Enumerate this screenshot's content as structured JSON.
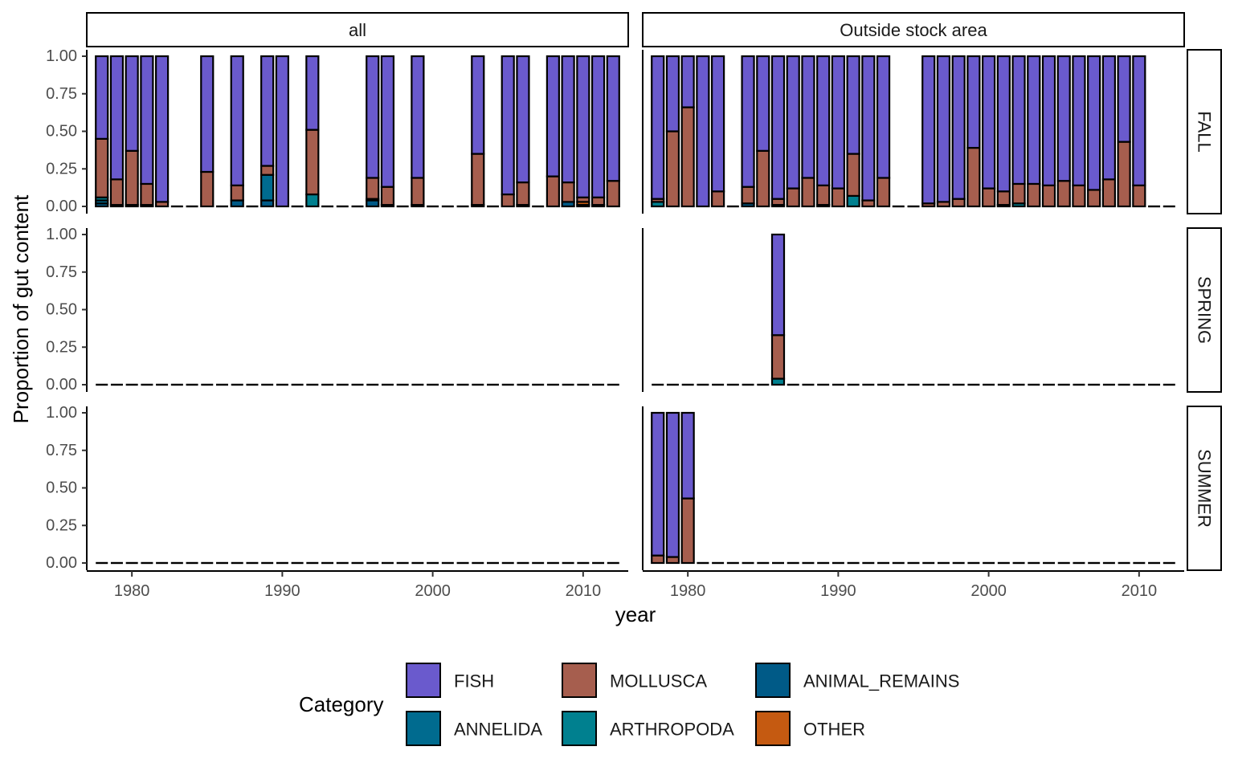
{
  "chart_data": {
    "type": "bar",
    "stacked": true,
    "xlabel": "year",
    "ylabel": "Proportion of gut content",
    "x_ticks": [
      1980,
      1990,
      2000,
      2010
    ],
    "y_ticks": [
      "0.00",
      "0.25",
      "0.50",
      "0.75",
      "1.00"
    ],
    "ylim": [
      0,
      1
    ],
    "xlim": [
      1977,
      2013
    ],
    "facet_columns": [
      "all",
      "Outside stock area"
    ],
    "facet_rows": [
      "FALL",
      "SPRING",
      "SUMMER"
    ],
    "grid": false,
    "legend": {
      "title": "Category",
      "position": "bottom",
      "items": [
        {
          "name": "FISH",
          "color": "#6a5acd"
        },
        {
          "name": "MOLLUSCA",
          "color": "#a65e4e"
        },
        {
          "name": "ANIMAL_REMAINS",
          "color": "#005a87"
        },
        {
          "name": "ANNELIDA",
          "color": "#006b8f"
        },
        {
          "name": "ARTHROPODA",
          "color": "#00808f"
        },
        {
          "name": "OTHER",
          "color": "#c55a11"
        }
      ]
    },
    "year_range": [
      1978,
      2012
    ],
    "panels": [
      {
        "column": "all",
        "row": "FALL",
        "bars": [
          {
            "year": 1978,
            "ANIMAL_REMAINS": 0.02,
            "ANNELIDA": 0.02,
            "ARTHROPODA": 0.02,
            "MOLLUSCA": 0.39,
            "FISH": 0.55
          },
          {
            "year": 1979,
            "ANIMAL_REMAINS": 0.01,
            "MOLLUSCA": 0.17,
            "FISH": 0.82
          },
          {
            "year": 1980,
            "ANIMAL_REMAINS": 0.01,
            "MOLLUSCA": 0.36,
            "FISH": 0.63
          },
          {
            "year": 1981,
            "ANIMAL_REMAINS": 0.01,
            "MOLLUSCA": 0.14,
            "FISH": 0.85
          },
          {
            "year": 1982,
            "MOLLUSCA": 0.03,
            "FISH": 0.97
          },
          {
            "year": 1985,
            "MOLLUSCA": 0.23,
            "FISH": 0.77
          },
          {
            "year": 1987,
            "ANIMAL_REMAINS": 0.04,
            "MOLLUSCA": 0.1,
            "FISH": 0.86
          },
          {
            "year": 1989,
            "ANIMAL_REMAINS": 0.04,
            "ANNELIDA": 0.17,
            "MOLLUSCA": 0.06,
            "FISH": 0.73
          },
          {
            "year": 1990,
            "FISH": 1.0
          },
          {
            "year": 1992,
            "ARTHROPODA": 0.08,
            "MOLLUSCA": 0.43,
            "FISH": 0.49
          },
          {
            "year": 1996,
            "ANIMAL_REMAINS": 0.04,
            "OTHER": 0.01,
            "MOLLUSCA": 0.14,
            "FISH": 0.81
          },
          {
            "year": 1997,
            "ANIMAL_REMAINS": 0.01,
            "MOLLUSCA": 0.12,
            "FISH": 0.87
          },
          {
            "year": 1999,
            "ANIMAL_REMAINS": 0.01,
            "MOLLUSCA": 0.18,
            "FISH": 0.81
          },
          {
            "year": 2003,
            "ANIMAL_REMAINS": 0.01,
            "MOLLUSCA": 0.34,
            "FISH": 0.65
          },
          {
            "year": 2005,
            "MOLLUSCA": 0.08,
            "FISH": 0.92
          },
          {
            "year": 2006,
            "ANIMAL_REMAINS": 0.01,
            "MOLLUSCA": 0.15,
            "FISH": 0.84
          },
          {
            "year": 2008,
            "MOLLUSCA": 0.2,
            "FISH": 0.8
          },
          {
            "year": 2009,
            "ANIMAL_REMAINS": 0.03,
            "MOLLUSCA": 0.13,
            "FISH": 0.84
          },
          {
            "year": 2010,
            "OTHER": 0.02,
            "ANIMAL_REMAINS": 0.01,
            "MOLLUSCA": 0.03,
            "FISH": 0.94
          },
          {
            "year": 2011,
            "ANIMAL_REMAINS": 0.01,
            "MOLLUSCA": 0.05,
            "FISH": 0.94
          },
          {
            "year": 2012,
            "MOLLUSCA": 0.17,
            "FISH": 0.83
          }
        ]
      },
      {
        "column": "Outside stock area",
        "row": "FALL",
        "bars": [
          {
            "year": 1978,
            "ARTHROPODA": 0.03,
            "MOLLUSCA": 0.02,
            "FISH": 0.95
          },
          {
            "year": 1979,
            "MOLLUSCA": 0.5,
            "FISH": 0.5
          },
          {
            "year": 1980,
            "MOLLUSCA": 0.66,
            "FISH": 0.34
          },
          {
            "year": 1981,
            "FISH": 1.0
          },
          {
            "year": 1982,
            "MOLLUSCA": 0.1,
            "FISH": 0.9
          },
          {
            "year": 1984,
            "ANIMAL_REMAINS": 0.02,
            "MOLLUSCA": 0.11,
            "FISH": 0.87
          },
          {
            "year": 1985,
            "MOLLUSCA": 0.37,
            "FISH": 0.63
          },
          {
            "year": 1986,
            "ANIMAL_REMAINS": 0.01,
            "MOLLUSCA": 0.04,
            "FISH": 0.95
          },
          {
            "year": 1987,
            "MOLLUSCA": 0.12,
            "FISH": 0.88
          },
          {
            "year": 1988,
            "MOLLUSCA": 0.19,
            "FISH": 0.81
          },
          {
            "year": 1989,
            "ANIMAL_REMAINS": 0.01,
            "MOLLUSCA": 0.13,
            "FISH": 0.86
          },
          {
            "year": 1990,
            "MOLLUSCA": 0.12,
            "FISH": 0.88
          },
          {
            "year": 1991,
            "ARTHROPODA": 0.07,
            "MOLLUSCA": 0.28,
            "FISH": 0.65
          },
          {
            "year": 1992,
            "MOLLUSCA": 0.04,
            "FISH": 0.96
          },
          {
            "year": 1993,
            "MOLLUSCA": 0.19,
            "FISH": 0.81
          },
          {
            "year": 1996,
            "MOLLUSCA": 0.02,
            "FISH": 0.98
          },
          {
            "year": 1997,
            "MOLLUSCA": 0.03,
            "FISH": 0.97
          },
          {
            "year": 1998,
            "MOLLUSCA": 0.05,
            "FISH": 0.95
          },
          {
            "year": 1999,
            "MOLLUSCA": 0.39,
            "FISH": 0.61
          },
          {
            "year": 2000,
            "MOLLUSCA": 0.12,
            "FISH": 0.88
          },
          {
            "year": 2001,
            "ANIMAL_REMAINS": 0.01,
            "MOLLUSCA": 0.09,
            "FISH": 0.9
          },
          {
            "year": 2002,
            "ARTHROPODA": 0.02,
            "MOLLUSCA": 0.13,
            "FISH": 0.85
          },
          {
            "year": 2003,
            "MOLLUSCA": 0.15,
            "FISH": 0.85
          },
          {
            "year": 2004,
            "MOLLUSCA": 0.14,
            "FISH": 0.86
          },
          {
            "year": 2005,
            "MOLLUSCA": 0.17,
            "FISH": 0.83
          },
          {
            "year": 2006,
            "MOLLUSCA": 0.14,
            "FISH": 0.86
          },
          {
            "year": 2007,
            "MOLLUSCA": 0.11,
            "FISH": 0.89
          },
          {
            "year": 2008,
            "MOLLUSCA": 0.18,
            "FISH": 0.82
          },
          {
            "year": 2009,
            "MOLLUSCA": 0.43,
            "FISH": 0.57
          },
          {
            "year": 2010,
            "MOLLUSCA": 0.14,
            "FISH": 0.86
          }
        ]
      },
      {
        "column": "all",
        "row": "SPRING",
        "bars": []
      },
      {
        "column": "Outside stock area",
        "row": "SPRING",
        "bars": [
          {
            "year": 1986,
            "ARTHROPODA": 0.04,
            "MOLLUSCA": 0.29,
            "FISH": 0.67
          }
        ]
      },
      {
        "column": "all",
        "row": "SUMMER",
        "bars": []
      },
      {
        "column": "Outside stock area",
        "row": "SUMMER",
        "bars": [
          {
            "year": 1978,
            "MOLLUSCA": 0.05,
            "FISH": 0.95
          },
          {
            "year": 1979,
            "MOLLUSCA": 0.04,
            "FISH": 0.96
          },
          {
            "year": 1980,
            "MOLLUSCA": 0.43,
            "FISH": 0.57
          }
        ]
      }
    ]
  }
}
